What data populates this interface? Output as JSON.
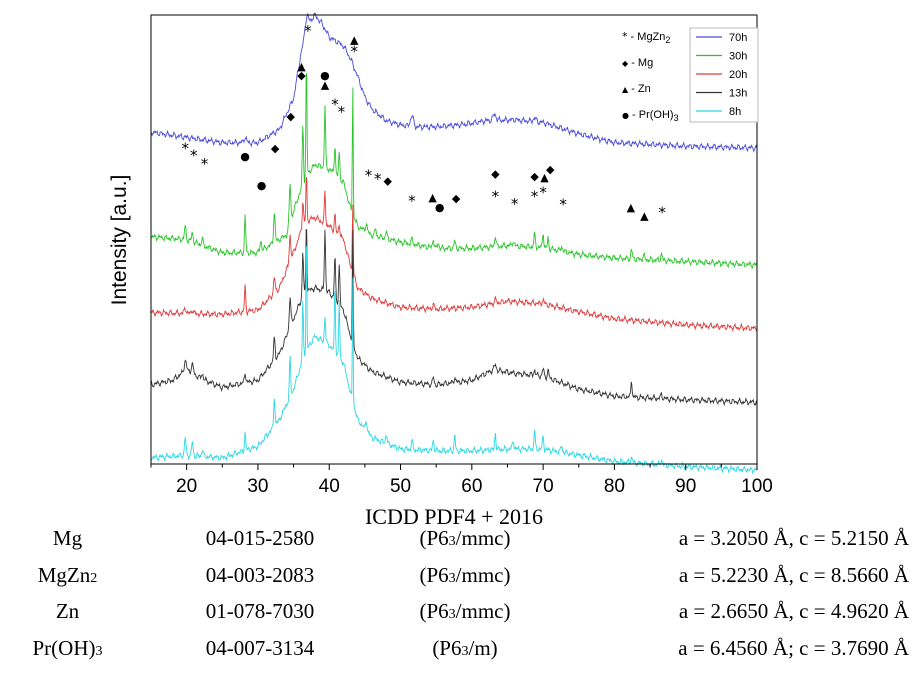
{
  "chart_data": {
    "type": "line",
    "title": "",
    "xlabel": "ICDD PDF4 + 2016",
    "ylabel": "Intensity [a.u.]",
    "xlim": [
      15,
      100
    ],
    "xticks": [
      20,
      30,
      40,
      50,
      60,
      70,
      80,
      90,
      100
    ],
    "y_tick_labels": false,
    "series": [
      {
        "name": "70h",
        "color": "#4a4ade",
        "offset": 3.55,
        "width": 0.9,
        "base": [
          [
            15,
            0.22
          ],
          [
            25,
            0.1
          ],
          [
            30,
            0.1
          ],
          [
            33,
            0.25
          ],
          [
            35,
            0.6
          ],
          [
            36,
            1.1
          ],
          [
            37,
            1.45
          ],
          [
            38,
            1.55
          ],
          [
            39,
            1.45
          ],
          [
            40,
            1.3
          ],
          [
            41,
            1.25
          ],
          [
            42,
            1.2
          ],
          [
            43,
            1.05
          ],
          [
            44,
            0.85
          ],
          [
            45,
            0.62
          ],
          [
            46,
            0.48
          ],
          [
            48,
            0.35
          ],
          [
            50,
            0.3
          ],
          [
            52,
            0.28
          ],
          [
            55,
            0.28
          ],
          [
            58,
            0.3
          ],
          [
            60,
            0.32
          ],
          [
            62,
            0.35
          ],
          [
            66,
            0.36
          ],
          [
            70,
            0.33
          ],
          [
            75,
            0.2
          ],
          [
            80,
            0.1
          ],
          [
            90,
            0.06
          ],
          [
            100,
            0.04
          ]
        ],
        "peaks": [
          [
            28.2,
            0.06,
            0.25
          ],
          [
            36.8,
            0.14,
            0.3
          ],
          [
            51.6,
            0.12,
            0.3
          ],
          [
            63.2,
            0.07,
            0.3
          ],
          [
            68.8,
            0.04,
            0.3
          ]
        ]
      },
      {
        "name": "30h",
        "color": "#2ac42a",
        "offset": 2.3,
        "width": 0.9,
        "base": [
          [
            15,
            0.28
          ],
          [
            20,
            0.25
          ],
          [
            25,
            0.1
          ],
          [
            30,
            0.1
          ],
          [
            34,
            0.3
          ],
          [
            35.5,
            0.7
          ],
          [
            37,
            1.0
          ],
          [
            38,
            1.1
          ],
          [
            40,
            1.05
          ],
          [
            42,
            0.9
          ],
          [
            43,
            0.6
          ],
          [
            44,
            0.4
          ],
          [
            46,
            0.3
          ],
          [
            50,
            0.22
          ],
          [
            55,
            0.15
          ],
          [
            60,
            0.15
          ],
          [
            65,
            0.18
          ],
          [
            70,
            0.16
          ],
          [
            75,
            0.08
          ],
          [
            80,
            0.04
          ],
          [
            90,
            0.0
          ],
          [
            100,
            -0.04
          ]
        ],
        "peaks": [
          [
            19.8,
            0.15,
            0.15
          ],
          [
            20.8,
            0.1,
            0.15
          ],
          [
            22.2,
            0.07,
            0.15
          ],
          [
            28.2,
            0.42,
            0.12
          ],
          [
            30.4,
            0.12,
            0.15
          ],
          [
            32.3,
            0.35,
            0.15
          ],
          [
            34.5,
            0.45,
            0.15
          ],
          [
            36.3,
            0.7,
            0.12
          ],
          [
            36.8,
            1.35,
            0.1
          ],
          [
            39.4,
            0.7,
            0.12
          ],
          [
            40.8,
            0.35,
            0.12
          ],
          [
            41.4,
            0.3,
            0.12
          ],
          [
            43.3,
            1.55,
            0.08
          ],
          [
            45.2,
            0.1,
            0.15
          ],
          [
            46.5,
            0.08,
            0.15
          ],
          [
            48.0,
            0.08,
            0.15
          ],
          [
            51.6,
            0.05,
            0.2
          ],
          [
            54.6,
            0.1,
            0.15
          ],
          [
            55.3,
            0.06,
            0.15
          ],
          [
            57.6,
            0.08,
            0.15
          ],
          [
            63.3,
            0.12,
            0.15
          ],
          [
            65.8,
            0.05,
            0.2
          ],
          [
            68.8,
            0.14,
            0.15
          ],
          [
            70.0,
            0.18,
            0.12
          ],
          [
            70.7,
            0.12,
            0.12
          ],
          [
            72.6,
            0.05,
            0.2
          ],
          [
            82.4,
            0.1,
            0.15
          ],
          [
            84.1,
            0.05,
            0.15
          ],
          [
            86.6,
            0.07,
            0.15
          ]
        ]
      },
      {
        "name": "20h",
        "color": "#e03a3a",
        "offset": 1.7,
        "width": 0.9,
        "base": [
          [
            15,
            0.02
          ],
          [
            25,
            0.0
          ],
          [
            30,
            0.05
          ],
          [
            33,
            0.3
          ],
          [
            35,
            0.7
          ],
          [
            36.5,
            1.05
          ],
          [
            38,
            1.1
          ],
          [
            40,
            1.0
          ],
          [
            42,
            0.85
          ],
          [
            43,
            0.55
          ],
          [
            44,
            0.3
          ],
          [
            46,
            0.18
          ],
          [
            50,
            0.08
          ],
          [
            55,
            0.06
          ],
          [
            60,
            0.08
          ],
          [
            65,
            0.15
          ],
          [
            70,
            0.12
          ],
          [
            75,
            0.03
          ],
          [
            80,
            -0.05
          ],
          [
            90,
            -0.12
          ],
          [
            100,
            -0.16
          ]
        ],
        "peaks": [
          [
            19.8,
            0.06,
            0.2
          ],
          [
            20.8,
            0.04,
            0.2
          ],
          [
            28.2,
            0.28,
            0.12
          ],
          [
            32.3,
            0.18,
            0.15
          ],
          [
            34.5,
            0.3,
            0.15
          ],
          [
            36.3,
            0.3,
            0.12
          ],
          [
            36.8,
            0.55,
            0.1
          ],
          [
            39.4,
            0.35,
            0.12
          ],
          [
            40.8,
            0.2,
            0.12
          ],
          [
            41.4,
            0.15,
            0.12
          ],
          [
            43.3,
            0.85,
            0.08
          ],
          [
            54.6,
            0.04,
            0.2
          ],
          [
            63.3,
            0.04,
            0.2
          ],
          [
            70.0,
            0.04,
            0.2
          ]
        ]
      },
      {
        "name": "13h",
        "color": "#333333",
        "offset": 0.85,
        "width": 0.9,
        "base": [
          [
            15,
            0.05
          ],
          [
            18,
            0.1
          ],
          [
            20,
            0.22
          ],
          [
            22,
            0.12
          ],
          [
            25,
            0.02
          ],
          [
            30,
            0.1
          ],
          [
            33,
            0.4
          ],
          [
            35,
            0.8
          ],
          [
            36.5,
            1.1
          ],
          [
            38,
            1.15
          ],
          [
            40,
            1.1
          ],
          [
            42,
            0.9
          ],
          [
            43,
            0.6
          ],
          [
            44,
            0.35
          ],
          [
            46,
            0.2
          ],
          [
            50,
            0.08
          ],
          [
            55,
            0.05
          ],
          [
            60,
            0.1
          ],
          [
            63,
            0.22
          ],
          [
            66,
            0.18
          ],
          [
            70,
            0.15
          ],
          [
            75,
            0.0
          ],
          [
            80,
            -0.08
          ],
          [
            90,
            -0.12
          ],
          [
            100,
            -0.15
          ]
        ],
        "peaks": [
          [
            19.8,
            0.12,
            0.2
          ],
          [
            20.8,
            0.1,
            0.2
          ],
          [
            22.2,
            0.06,
            0.2
          ],
          [
            28.2,
            0.12,
            0.15
          ],
          [
            32.3,
            0.25,
            0.15
          ],
          [
            34.5,
            0.35,
            0.15
          ],
          [
            36.3,
            0.5,
            0.12
          ],
          [
            36.8,
            0.85,
            0.1
          ],
          [
            39.4,
            0.7,
            0.12
          ],
          [
            40.8,
            0.5,
            0.12
          ],
          [
            41.4,
            0.45,
            0.12
          ],
          [
            43.3,
            1.35,
            0.08
          ],
          [
            54.6,
            0.08,
            0.15
          ],
          [
            57.6,
            0.06,
            0.15
          ],
          [
            63.3,
            0.06,
            0.2
          ],
          [
            68.8,
            0.06,
            0.15
          ],
          [
            70.0,
            0.08,
            0.15
          ],
          [
            70.7,
            0.08,
            0.15
          ],
          [
            82.4,
            0.2,
            0.12
          ],
          [
            86.6,
            0.05,
            0.15
          ]
        ]
      },
      {
        "name": "8h",
        "color": "#2ad8e4",
        "offset": 0.05,
        "width": 0.9,
        "base": [
          [
            15,
            0.02
          ],
          [
            20,
            0.05
          ],
          [
            25,
            0.02
          ],
          [
            30,
            0.15
          ],
          [
            33,
            0.45
          ],
          [
            35,
            0.8
          ],
          [
            36.5,
            1.2
          ],
          [
            38,
            1.4
          ],
          [
            40,
            1.3
          ],
          [
            42,
            1.1
          ],
          [
            43,
            0.75
          ],
          [
            44,
            0.45
          ],
          [
            46,
            0.25
          ],
          [
            50,
            0.12
          ],
          [
            55,
            0.1
          ],
          [
            60,
            0.1
          ],
          [
            65,
            0.12
          ],
          [
            70,
            0.12
          ],
          [
            75,
            0.05
          ],
          [
            80,
            -0.02
          ],
          [
            90,
            -0.08
          ],
          [
            100,
            -0.12
          ]
        ],
        "peaks": [
          [
            19.8,
            0.2,
            0.15
          ],
          [
            20.8,
            0.15,
            0.15
          ],
          [
            22.2,
            0.08,
            0.15
          ],
          [
            28.2,
            0.2,
            0.12
          ],
          [
            32.3,
            0.35,
            0.12
          ],
          [
            34.5,
            0.45,
            0.12
          ],
          [
            36.3,
            0.65,
            0.1
          ],
          [
            36.8,
            1.5,
            0.08
          ],
          [
            39.4,
            0.3,
            0.12
          ],
          [
            40.8,
            0.8,
            0.1
          ],
          [
            41.4,
            0.65,
            0.1
          ],
          [
            43.3,
            1.55,
            0.07
          ],
          [
            45.2,
            0.12,
            0.15
          ],
          [
            48.0,
            0.1,
            0.15
          ],
          [
            51.6,
            0.1,
            0.15
          ],
          [
            54.6,
            0.12,
            0.15
          ],
          [
            57.6,
            0.18,
            0.12
          ],
          [
            63.3,
            0.2,
            0.12
          ],
          [
            65.8,
            0.1,
            0.15
          ],
          [
            68.8,
            0.22,
            0.12
          ],
          [
            70.0,
            0.15,
            0.12
          ],
          [
            72.6,
            0.08,
            0.15
          ],
          [
            82.4,
            0.06,
            0.15
          ],
          [
            86.6,
            0.06,
            0.15
          ]
        ]
      }
    ],
    "legend": {
      "placement": "top-right",
      "entries": [
        "70h",
        "30h",
        "20h",
        "13h",
        "8h"
      ],
      "phase_key": [
        {
          "symbol": "*",
          "label": "- MgZn",
          "sub": "2"
        },
        {
          "symbol": "◆",
          "label": "- Mg",
          "sub": ""
        },
        {
          "symbol": "▲",
          "label": "- Zn",
          "sub": ""
        },
        {
          "symbol": "●",
          "label": "- Pr(OH)",
          "sub": "3"
        }
      ]
    },
    "annotations": [
      {
        "s": "*",
        "x": 37.0,
        "y": 4.95
      },
      {
        "s": "▲",
        "x": 43.5,
        "y": 4.82
      },
      {
        "s": "*",
        "x": 43.5,
        "y": 4.72
      },
      {
        "s": "▲",
        "x": 36.1,
        "y": 4.52
      },
      {
        "s": "◆",
        "x": 36.1,
        "y": 4.42
      },
      {
        "s": "●",
        "x": 39.4,
        "y": 4.42
      },
      {
        "s": "▲",
        "x": 39.4,
        "y": 4.31
      },
      {
        "s": "*",
        "x": 40.8,
        "y": 4.12
      },
      {
        "s": "*",
        "x": 41.7,
        "y": 4.03
      },
      {
        "s": "◆",
        "x": 34.6,
        "y": 3.95
      },
      {
        "s": "*",
        "x": 19.8,
        "y": 3.62
      },
      {
        "s": "*",
        "x": 21.0,
        "y": 3.54
      },
      {
        "s": "*",
        "x": 22.5,
        "y": 3.44
      },
      {
        "s": "●",
        "x": 28.2,
        "y": 3.5
      },
      {
        "s": "◆",
        "x": 32.4,
        "y": 3.59
      },
      {
        "s": "●",
        "x": 30.5,
        "y": 3.17
      },
      {
        "s": "*",
        "x": 45.5,
        "y": 3.31
      },
      {
        "s": "*",
        "x": 46.8,
        "y": 3.27
      },
      {
        "s": "◆",
        "x": 48.2,
        "y": 3.22
      },
      {
        "s": "*",
        "x": 51.6,
        "y": 3.02
      },
      {
        "s": "▲",
        "x": 54.5,
        "y": 3.03
      },
      {
        "s": "●",
        "x": 55.5,
        "y": 2.92
      },
      {
        "s": "◆",
        "x": 57.8,
        "y": 3.02
      },
      {
        "s": "◆",
        "x": 63.3,
        "y": 3.3
      },
      {
        "s": "*",
        "x": 63.3,
        "y": 3.07
      },
      {
        "s": "*",
        "x": 66.0,
        "y": 2.99
      },
      {
        "s": "◆",
        "x": 68.8,
        "y": 3.27
      },
      {
        "s": "*",
        "x": 68.8,
        "y": 3.07
      },
      {
        "s": "*",
        "x": 70.0,
        "y": 3.12
      },
      {
        "s": "▲",
        "x": 70.2,
        "y": 3.26
      },
      {
        "s": "◆",
        "x": 71.0,
        "y": 3.35
      },
      {
        "s": "*",
        "x": 72.8,
        "y": 2.98
      },
      {
        "s": "▲",
        "x": 82.3,
        "y": 2.92
      },
      {
        "s": "▲",
        "x": 84.2,
        "y": 2.82
      },
      {
        "s": "*",
        "x": 86.7,
        "y": 2.89
      }
    ]
  },
  "reference_table": {
    "rows": [
      {
        "phase": "Mg",
        "phase_sub": "",
        "card": "04-015-2580",
        "sg_pre": "(P6",
        "sg_sub": "3",
        "sg_post": "/mmc)",
        "lattice": "a = 3.2050 Å, c = 5.2150 Å"
      },
      {
        "phase": "MgZn",
        "phase_sub": "2",
        "card": "04-003-2083",
        "sg_pre": "(P6",
        "sg_sub": "3",
        "sg_post": "/mmc)",
        "lattice": "a = 5.2230 Å, c = 8.5660 Å"
      },
      {
        "phase": "Zn",
        "phase_sub": "",
        "card": "01-078-7030",
        "sg_pre": "(P6",
        "sg_sub": "3",
        "sg_post": "/mmc)",
        "lattice": "a = 2.6650 Å, c = 4.9620 Å"
      },
      {
        "phase": "Pr(OH)",
        "phase_sub": "3",
        "card": "04-007-3134",
        "sg_pre": "(P6",
        "sg_sub": "3",
        "sg_post": "/m)",
        "lattice": "a = 6.4560 Å; c = 3.7690 Å"
      }
    ]
  }
}
